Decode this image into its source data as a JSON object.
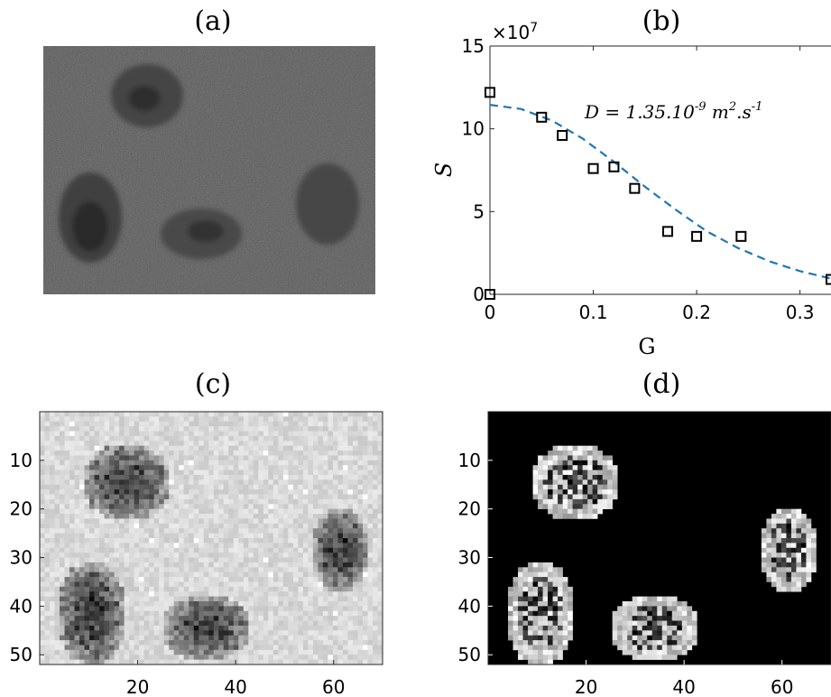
{
  "figure": {
    "labels": {
      "a": "(a)",
      "b": "(b)",
      "c": "(c)",
      "d": "(d)"
    }
  },
  "chart_data": [
    {
      "type": "scatter",
      "panel": "(b)",
      "xlabel": "G",
      "ylabel": "S",
      "y_exponent_label": "×10",
      "y_exponent": "7",
      "annotation": "D = 1.35.10^-9 m^2.s^-1",
      "xlim": [
        0,
        0.33
      ],
      "ylim": [
        0,
        15
      ],
      "xticks": [
        "0",
        "0.1",
        "0.2",
        "0.3"
      ],
      "yticks": [
        "0",
        "5",
        "10",
        "15"
      ],
      "series": [
        {
          "marker": "square",
          "x": [
            0,
            0,
            0.05,
            0.07,
            0.1,
            0.12,
            0.14,
            0.172,
            0.2,
            0.243,
            0.33
          ],
          "y": [
            0,
            12.2,
            10.7,
            9.6,
            7.6,
            7.7,
            6.4,
            3.8,
            3.5,
            3.5,
            0.9
          ]
        },
        {
          "style": "dashed",
          "color": "#1f77b4",
          "x": [
            0,
            0.03,
            0.06,
            0.09,
            0.12,
            0.15,
            0.18,
            0.21,
            0.24,
            0.27,
            0.3,
            0.33
          ],
          "y": [
            11.45,
            11.2,
            10.5,
            9.4,
            8.0,
            6.5,
            5.1,
            3.8,
            2.8,
            2.0,
            1.4,
            0.95
          ]
        }
      ]
    },
    {
      "type": "heatmap",
      "panel": "(c)",
      "colormap": "gray",
      "xticks": [
        "20",
        "40",
        "60"
      ],
      "yticks": [
        "10",
        "20",
        "30",
        "40",
        "50"
      ],
      "xlim": [
        0,
        70
      ],
      "ylim": [
        52,
        0
      ]
    },
    {
      "type": "heatmap",
      "panel": "(d)",
      "colormap": "gray",
      "xticks": [
        "20",
        "40",
        "60"
      ],
      "yticks": [
        "10",
        "20",
        "30",
        "40",
        "50"
      ],
      "xlim": [
        0,
        70
      ],
      "ylim": [
        52,
        0
      ]
    }
  ]
}
